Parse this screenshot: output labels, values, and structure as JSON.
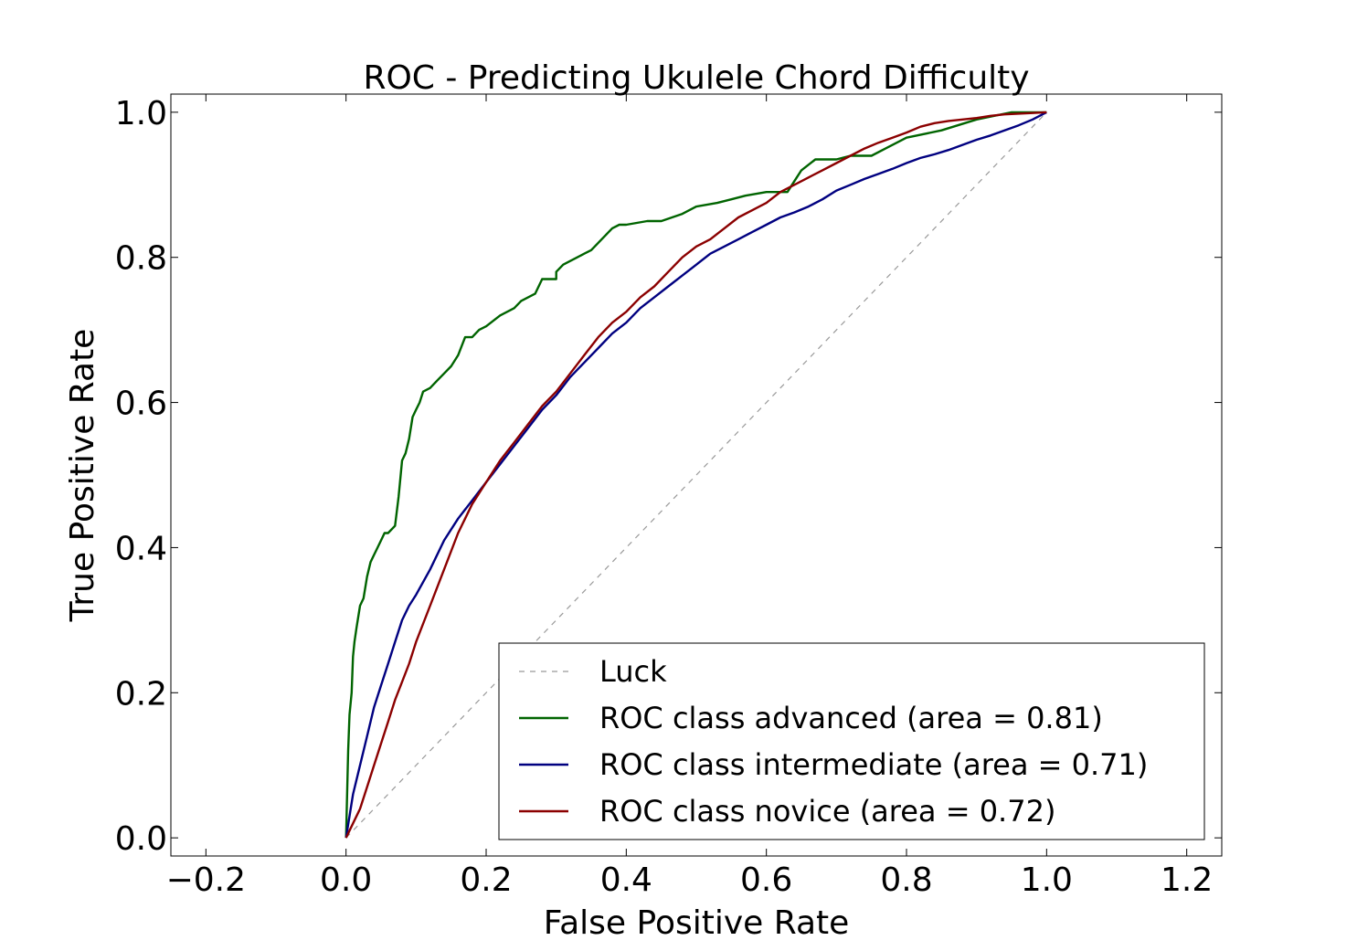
{
  "chart_data": {
    "type": "line",
    "title": "ROC - Predicting Ukulele Chord Difficulty",
    "xlabel": "False Positive Rate",
    "ylabel": "True Positive Rate",
    "xlim": [
      -0.25,
      1.25
    ],
    "ylim": [
      -0.025,
      1.025
    ],
    "x_ticks": [
      -0.2,
      0.0,
      0.2,
      0.4,
      0.6,
      0.8,
      1.0,
      1.2
    ],
    "x_tick_labels": [
      "−0.2",
      "0.0",
      "0.2",
      "0.4",
      "0.6",
      "0.8",
      "1.0",
      "1.2"
    ],
    "y_ticks": [
      0.0,
      0.2,
      0.4,
      0.6,
      0.8,
      1.0
    ],
    "y_tick_labels": [
      "0.0",
      "0.2",
      "0.4",
      "0.6",
      "0.8",
      "1.0"
    ],
    "grid": false,
    "legend_position": "lower-right",
    "series": [
      {
        "name": "Luck",
        "color": "#999999",
        "dashed": true,
        "x": [
          0.0,
          1.0
        ],
        "y": [
          0.0,
          1.0
        ]
      },
      {
        "name": "ROC class advanced (area = 0.81)",
        "color": "#006400",
        "dashed": false,
        "x": [
          0.0,
          0.003,
          0.005,
          0.008,
          0.01,
          0.012,
          0.015,
          0.02,
          0.025,
          0.03,
          0.035,
          0.04,
          0.045,
          0.05,
          0.055,
          0.06,
          0.07,
          0.075,
          0.08,
          0.085,
          0.09,
          0.095,
          0.1,
          0.105,
          0.11,
          0.12,
          0.13,
          0.14,
          0.15,
          0.16,
          0.17,
          0.18,
          0.19,
          0.2,
          0.22,
          0.24,
          0.25,
          0.27,
          0.28,
          0.3,
          0.3,
          0.31,
          0.33,
          0.34,
          0.35,
          0.36,
          0.37,
          0.38,
          0.39,
          0.4,
          0.43,
          0.45,
          0.48,
          0.5,
          0.53,
          0.55,
          0.57,
          0.6,
          0.63,
          0.64,
          0.65,
          0.67,
          0.7,
          0.72,
          0.75,
          0.77,
          0.8,
          0.85,
          0.9,
          0.95,
          1.0
        ],
        "y": [
          0.0,
          0.12,
          0.17,
          0.2,
          0.25,
          0.27,
          0.29,
          0.32,
          0.33,
          0.36,
          0.38,
          0.39,
          0.4,
          0.41,
          0.42,
          0.42,
          0.43,
          0.47,
          0.52,
          0.53,
          0.55,
          0.58,
          0.59,
          0.6,
          0.615,
          0.62,
          0.63,
          0.64,
          0.65,
          0.665,
          0.69,
          0.69,
          0.7,
          0.705,
          0.72,
          0.73,
          0.74,
          0.75,
          0.77,
          0.77,
          0.78,
          0.79,
          0.8,
          0.805,
          0.81,
          0.82,
          0.83,
          0.84,
          0.845,
          0.845,
          0.85,
          0.85,
          0.86,
          0.87,
          0.875,
          0.88,
          0.885,
          0.89,
          0.89,
          0.905,
          0.92,
          0.935,
          0.935,
          0.94,
          0.94,
          0.95,
          0.965,
          0.975,
          0.99,
          1.0,
          1.0
        ]
      },
      {
        "name": "ROC class intermediate (area = 0.71)",
        "color": "#000080",
        "dashed": false,
        "x": [
          0.0,
          0.005,
          0.01,
          0.02,
          0.03,
          0.04,
          0.05,
          0.06,
          0.07,
          0.08,
          0.09,
          0.1,
          0.12,
          0.14,
          0.16,
          0.18,
          0.2,
          0.22,
          0.24,
          0.26,
          0.28,
          0.3,
          0.32,
          0.34,
          0.36,
          0.38,
          0.4,
          0.42,
          0.44,
          0.46,
          0.48,
          0.5,
          0.52,
          0.54,
          0.56,
          0.58,
          0.6,
          0.62,
          0.64,
          0.66,
          0.68,
          0.7,
          0.72,
          0.74,
          0.76,
          0.78,
          0.8,
          0.82,
          0.84,
          0.86,
          0.88,
          0.9,
          0.92,
          0.94,
          0.96,
          0.98,
          1.0
        ],
        "y": [
          0.0,
          0.03,
          0.06,
          0.1,
          0.14,
          0.18,
          0.21,
          0.24,
          0.27,
          0.3,
          0.32,
          0.335,
          0.37,
          0.41,
          0.44,
          0.465,
          0.49,
          0.515,
          0.54,
          0.565,
          0.59,
          0.61,
          0.635,
          0.655,
          0.675,
          0.695,
          0.71,
          0.73,
          0.745,
          0.76,
          0.775,
          0.79,
          0.805,
          0.815,
          0.825,
          0.835,
          0.845,
          0.855,
          0.862,
          0.87,
          0.88,
          0.892,
          0.9,
          0.908,
          0.915,
          0.922,
          0.93,
          0.937,
          0.942,
          0.948,
          0.955,
          0.962,
          0.968,
          0.975,
          0.982,
          0.99,
          1.0
        ]
      },
      {
        "name": "ROC class novice (area = 0.72)",
        "color": "#8B0000",
        "dashed": false,
        "x": [
          0.0,
          0.005,
          0.01,
          0.02,
          0.03,
          0.04,
          0.05,
          0.06,
          0.07,
          0.08,
          0.09,
          0.1,
          0.12,
          0.14,
          0.16,
          0.18,
          0.2,
          0.22,
          0.24,
          0.26,
          0.28,
          0.3,
          0.32,
          0.34,
          0.36,
          0.38,
          0.4,
          0.42,
          0.44,
          0.46,
          0.48,
          0.5,
          0.52,
          0.54,
          0.56,
          0.58,
          0.6,
          0.62,
          0.64,
          0.66,
          0.68,
          0.7,
          0.72,
          0.74,
          0.76,
          0.78,
          0.8,
          0.82,
          0.84,
          0.86,
          0.88,
          0.9,
          0.92,
          0.94,
          0.96,
          0.98,
          1.0
        ],
        "y": [
          0.0,
          0.01,
          0.02,
          0.04,
          0.07,
          0.1,
          0.13,
          0.16,
          0.19,
          0.215,
          0.24,
          0.27,
          0.32,
          0.37,
          0.42,
          0.46,
          0.49,
          0.52,
          0.545,
          0.57,
          0.595,
          0.615,
          0.64,
          0.665,
          0.69,
          0.71,
          0.725,
          0.745,
          0.76,
          0.78,
          0.8,
          0.815,
          0.825,
          0.84,
          0.855,
          0.865,
          0.875,
          0.89,
          0.9,
          0.91,
          0.92,
          0.93,
          0.94,
          0.95,
          0.958,
          0.965,
          0.972,
          0.98,
          0.985,
          0.988,
          0.99,
          0.992,
          0.995,
          0.997,
          0.998,
          0.999,
          1.0
        ]
      }
    ]
  }
}
